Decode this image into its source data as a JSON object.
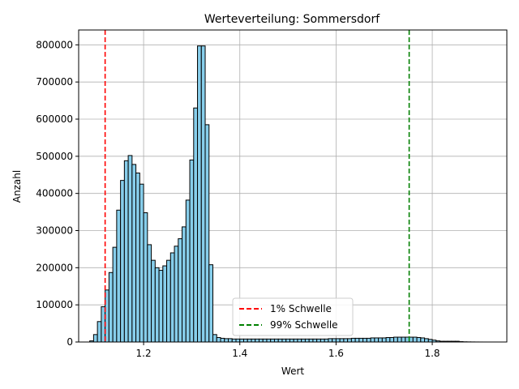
{
  "chart_data": {
    "type": "bar",
    "title": "Werteverteilung: Sommersdorf",
    "xlabel": "Wert",
    "ylabel": "Anzahl",
    "xlim": [
      1.065,
      1.955
    ],
    "ylim": [
      0,
      840000
    ],
    "x_ticks": [
      1.2,
      1.4,
      1.6,
      1.8
    ],
    "x_tick_labels": [
      "1.2",
      "1.4",
      "1.6",
      "1.8"
    ],
    "y_ticks": [
      0,
      100000,
      200000,
      300000,
      400000,
      500000,
      600000,
      700000,
      800000
    ],
    "y_tick_labels": [
      "0",
      "100000",
      "200000",
      "300000",
      "400000",
      "500000",
      "600000",
      "700000",
      "800000"
    ],
    "grid": true,
    "bar_color": "#87ceeb",
    "bar_edge_color": "#000000",
    "bin_width": 0.008,
    "bin_starts": [
      1.088,
      1.096,
      1.104,
      1.112,
      1.12,
      1.128,
      1.136,
      1.144,
      1.152,
      1.16,
      1.168,
      1.176,
      1.184,
      1.192,
      1.2,
      1.208,
      1.216,
      1.224,
      1.232,
      1.24,
      1.248,
      1.256,
      1.264,
      1.272,
      1.28,
      1.288,
      1.296,
      1.304,
      1.312,
      1.32,
      1.328,
      1.336,
      1.344,
      1.352,
      1.36,
      1.368,
      1.376,
      1.384,
      1.392,
      1.4,
      1.408,
      1.416,
      1.424,
      1.432,
      1.44,
      1.448,
      1.456,
      1.464,
      1.472,
      1.48,
      1.488,
      1.496,
      1.504,
      1.512,
      1.52,
      1.528,
      1.536,
      1.544,
      1.552,
      1.56,
      1.568,
      1.576,
      1.584,
      1.592,
      1.6,
      1.608,
      1.616,
      1.624,
      1.632,
      1.64,
      1.648,
      1.656,
      1.664,
      1.672,
      1.68,
      1.688,
      1.696,
      1.704,
      1.712,
      1.72,
      1.728,
      1.736,
      1.744,
      1.752,
      1.76,
      1.768,
      1.776,
      1.784,
      1.792,
      1.8,
      1.808,
      1.816,
      1.824,
      1.832,
      1.84,
      1.848,
      1.856,
      1.864,
      1.872,
      1.88,
      1.888,
      1.896,
      1.904,
      1.912,
      1.92,
      1.928
    ],
    "values": [
      3000,
      20000,
      55000,
      95000,
      140000,
      187000,
      255000,
      355000,
      435000,
      488000,
      502000,
      478000,
      455000,
      425000,
      348000,
      262000,
      220000,
      200000,
      193000,
      205000,
      220000,
      240000,
      258000,
      278000,
      310000,
      382000,
      490000,
      630000,
      797000,
      797000,
      585000,
      208000,
      20000,
      12000,
      10000,
      9000,
      9000,
      8000,
      8000,
      8000,
      8000,
      8000,
      8000,
      8000,
      8000,
      8000,
      8000,
      8000,
      8000,
      8000,
      8000,
      8000,
      8000,
      8000,
      8000,
      8000,
      8000,
      8000,
      8000,
      8000,
      8000,
      8000,
      9000,
      9000,
      9000,
      9000,
      9000,
      9000,
      10000,
      10000,
      10000,
      10000,
      10000,
      11000,
      11000,
      11000,
      11000,
      12000,
      12000,
      13000,
      13000,
      13000,
      13000,
      13000,
      13000,
      12000,
      11000,
      9000,
      7000,
      5000,
      3000,
      2000,
      2000,
      2000,
      2000,
      2000,
      1000,
      500,
      300,
      200,
      100,
      50,
      20,
      10,
      5,
      1
    ],
    "thresholds": [
      {
        "name": "1% Schwelle",
        "value": 1.12,
        "color": "#ff0000"
      },
      {
        "name": "99% Schwelle",
        "value": 1.752,
        "color": "#008000"
      }
    ],
    "legend_position": "lower center"
  }
}
